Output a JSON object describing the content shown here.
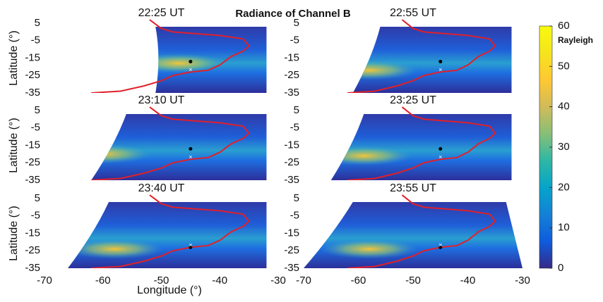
{
  "chart_data": {
    "type": "heatmap",
    "title": "Radiance of Channel  B",
    "panels": [
      {
        "title": "22:25 UT"
      },
      {
        "title": "22:55 UT"
      },
      {
        "title": "23:10 UT"
      },
      {
        "title": "23:25 UT"
      },
      {
        "title": "23:40 UT"
      },
      {
        "title": "23:55 UT"
      }
    ],
    "xlabel": "Longitude (°)",
    "ylabel": "Latitude (°)",
    "xlim": [
      -70,
      -30
    ],
    "xticks": [
      -70,
      -60,
      -50,
      -40,
      -30
    ],
    "ylim": [
      -35,
      5
    ],
    "yticks": [
      5,
      -5,
      -15,
      -25,
      -35
    ],
    "colorbar_label": "Rayleigh",
    "clim": [
      0,
      60
    ],
    "cticks": [
      60,
      50,
      40,
      30,
      20,
      10,
      0
    ],
    "colormap": [
      "#352a87",
      "#0f5cdd",
      "#1481d6",
      "#06a4ca",
      "#2eb7a4",
      "#87bf77",
      "#d1bb59",
      "#fec832",
      "#f5e41d",
      "#f9fb0e"
    ]
  }
}
